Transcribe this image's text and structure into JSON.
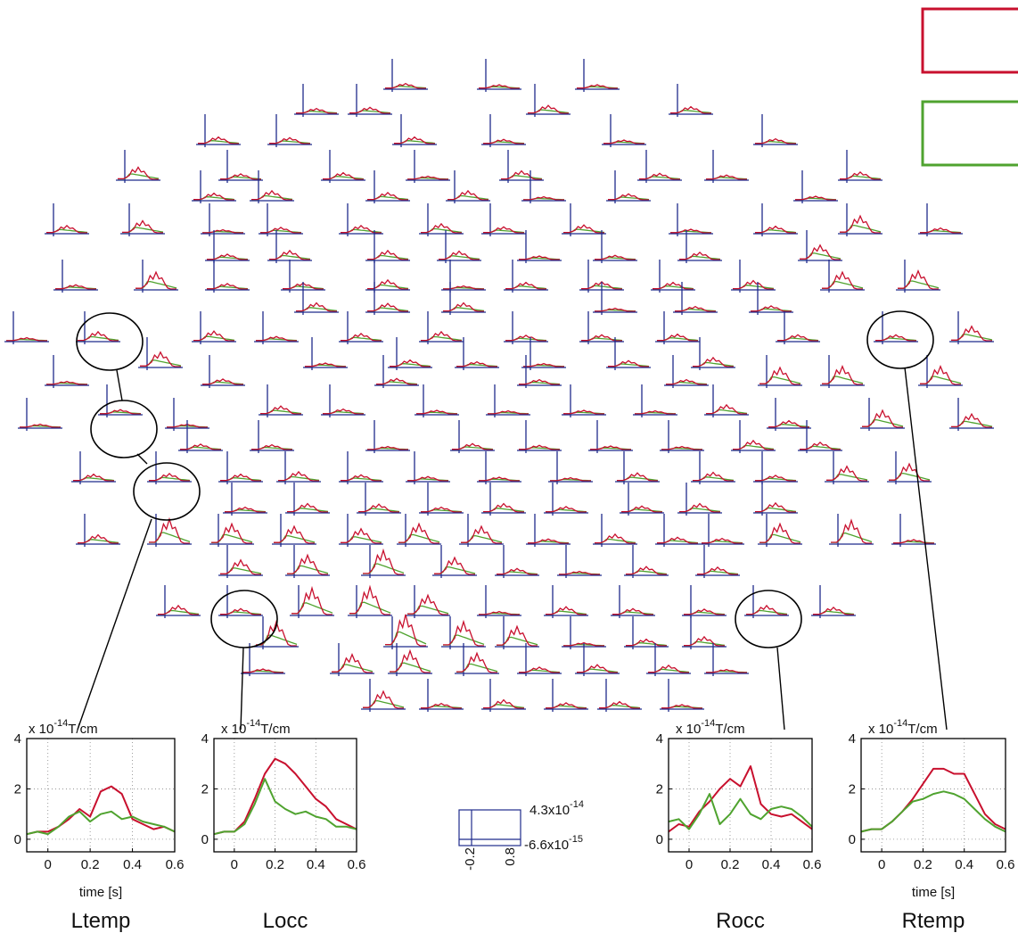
{
  "colors": {
    "condition_1": "#c8102e",
    "condition_2": "#4fa32f",
    "axis": "#1f2b8c",
    "frame": "#000000"
  },
  "legend": {
    "entries": [
      {
        "color": "#c8102e",
        "label": ""
      },
      {
        "color": "#4fa32f",
        "label": ""
      }
    ]
  },
  "scale_box": {
    "y_top": "4.3x10",
    "y_top_exp": "-14",
    "y_bottom": "-6.6x10",
    "y_bottom_exp": "-15",
    "x_left": "-0.2",
    "x_right": "0.8"
  },
  "chart_data": [
    {
      "type": "line",
      "name": "Ltemp",
      "title": "Ltemp",
      "unit_label": "x 10",
      "unit_exp": "-14",
      "unit_suffix": "T/cm",
      "xlabel": "time [s]",
      "xlim": [
        -0.1,
        0.6
      ],
      "ylim": [
        -0.5,
        4
      ],
      "xticks": [
        "0",
        "0.2",
        "0.4",
        "0.6"
      ],
      "yticks": [
        "0",
        "2",
        "4"
      ],
      "grid": true,
      "x": [
        -0.1,
        -0.05,
        0,
        0.05,
        0.1,
        0.15,
        0.2,
        0.25,
        0.3,
        0.35,
        0.4,
        0.45,
        0.5,
        0.55,
        0.6
      ],
      "series": [
        {
          "color": "#c8102e",
          "values": [
            0.2,
            0.3,
            0.3,
            0.5,
            0.8,
            1.2,
            0.9,
            1.9,
            2.1,
            1.8,
            0.8,
            0.6,
            0.4,
            0.5,
            0.3
          ]
        },
        {
          "color": "#4fa32f",
          "values": [
            0.2,
            0.3,
            0.2,
            0.5,
            0.9,
            1.1,
            0.7,
            1.0,
            1.1,
            0.8,
            0.9,
            0.7,
            0.6,
            0.5,
            0.3
          ]
        }
      ]
    },
    {
      "type": "line",
      "name": "Locc",
      "title": "Locc",
      "unit_label": "x 10",
      "unit_exp": "-14",
      "unit_suffix": "T/cm",
      "xlabel": "",
      "xlim": [
        -0.1,
        0.6
      ],
      "ylim": [
        -0.5,
        4
      ],
      "xticks": [
        "0",
        "0.2",
        "0.4",
        "0.6"
      ],
      "yticks": [
        "0",
        "2",
        "4"
      ],
      "grid": true,
      "x": [
        -0.1,
        -0.05,
        0,
        0.05,
        0.1,
        0.15,
        0.2,
        0.25,
        0.3,
        0.35,
        0.4,
        0.45,
        0.5,
        0.55,
        0.6
      ],
      "series": [
        {
          "color": "#c8102e",
          "values": [
            0.2,
            0.3,
            0.3,
            0.7,
            1.6,
            2.6,
            3.2,
            3.0,
            2.6,
            2.1,
            1.6,
            1.3,
            0.8,
            0.6,
            0.4
          ]
        },
        {
          "color": "#4fa32f",
          "values": [
            0.2,
            0.3,
            0.3,
            0.6,
            1.4,
            2.4,
            1.5,
            1.2,
            1.0,
            1.1,
            0.9,
            0.8,
            0.5,
            0.5,
            0.4
          ]
        }
      ]
    },
    {
      "type": "line",
      "name": "Rocc",
      "title": "Rocc",
      "unit_label": "x 10",
      "unit_exp": "-14",
      "unit_suffix": "T/cm",
      "xlabel": "",
      "xlim": [
        -0.1,
        0.6
      ],
      "ylim": [
        -0.5,
        4
      ],
      "xticks": [
        "0",
        "0.2",
        "0.4",
        "0.6"
      ],
      "yticks": [
        "0",
        "2",
        "4"
      ],
      "grid": true,
      "x": [
        -0.1,
        -0.05,
        0,
        0.05,
        0.1,
        0.15,
        0.2,
        0.25,
        0.3,
        0.35,
        0.4,
        0.45,
        0.5,
        0.55,
        0.6
      ],
      "series": [
        {
          "color": "#c8102e",
          "values": [
            0.3,
            0.6,
            0.5,
            1.1,
            1.5,
            2.0,
            2.4,
            2.1,
            2.9,
            1.4,
            1.0,
            0.9,
            1.0,
            0.7,
            0.4
          ]
        },
        {
          "color": "#4fa32f",
          "values": [
            0.7,
            0.8,
            0.4,
            1.0,
            1.8,
            0.6,
            1.0,
            1.6,
            1.0,
            0.8,
            1.2,
            1.3,
            1.2,
            0.9,
            0.5
          ]
        }
      ]
    },
    {
      "type": "line",
      "name": "Rtemp",
      "title": "Rtemp",
      "unit_label": "x 10",
      "unit_exp": "-14",
      "unit_suffix": "T/cm",
      "xlabel": "time [s]",
      "xlim": [
        -0.1,
        0.6
      ],
      "ylim": [
        -0.5,
        4
      ],
      "xticks": [
        "0",
        "0.2",
        "0.4",
        "0.6"
      ],
      "yticks": [
        "0",
        "2",
        "4"
      ],
      "grid": true,
      "x": [
        -0.1,
        -0.05,
        0,
        0.05,
        0.1,
        0.15,
        0.2,
        0.25,
        0.3,
        0.35,
        0.4,
        0.45,
        0.5,
        0.55,
        0.6
      ],
      "series": [
        {
          "color": "#c8102e",
          "values": [
            0.3,
            0.4,
            0.4,
            0.7,
            1.1,
            1.6,
            2.2,
            2.8,
            2.8,
            2.6,
            2.6,
            1.8,
            1.0,
            0.6,
            0.4
          ]
        },
        {
          "color": "#4fa32f",
          "values": [
            0.3,
            0.4,
            0.4,
            0.7,
            1.1,
            1.5,
            1.6,
            1.8,
            1.9,
            1.8,
            1.6,
            1.2,
            0.8,
            0.5,
            0.3
          ]
        }
      ]
    }
  ]
}
